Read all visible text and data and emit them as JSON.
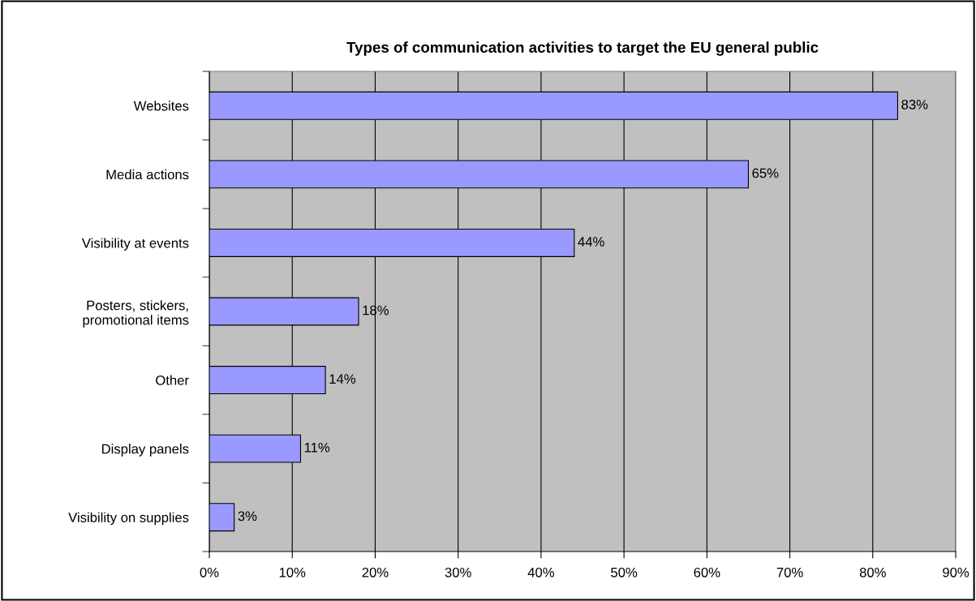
{
  "chart_data": {
    "type": "bar",
    "orientation": "horizontal",
    "title": "Types of communication activities to target the EU general public",
    "categories": [
      "Websites",
      "Media actions",
      "Visibility at events",
      "Posters, stickers,\npromotional items",
      "Other",
      "Display panels",
      "Visibility on supplies"
    ],
    "values": [
      83,
      65,
      44,
      18,
      14,
      11,
      3
    ],
    "value_labels": [
      "83%",
      "65%",
      "44%",
      "18%",
      "14%",
      "11%",
      "3%"
    ],
    "color": "#9999ff",
    "xlim": [
      0,
      90
    ],
    "xticks": [
      {
        "value": 0,
        "label": "0%"
      },
      {
        "value": 10,
        "label": "10%"
      },
      {
        "value": 20,
        "label": "20%"
      },
      {
        "value": 30,
        "label": "30%"
      },
      {
        "value": 40,
        "label": "40%"
      },
      {
        "value": 50,
        "label": "50%"
      },
      {
        "value": 60,
        "label": "60%"
      },
      {
        "value": 70,
        "label": "70%"
      },
      {
        "value": 80,
        "label": "80%"
      },
      {
        "value": 90,
        "label": "90%"
      }
    ],
    "grid": "x",
    "legend": false
  }
}
